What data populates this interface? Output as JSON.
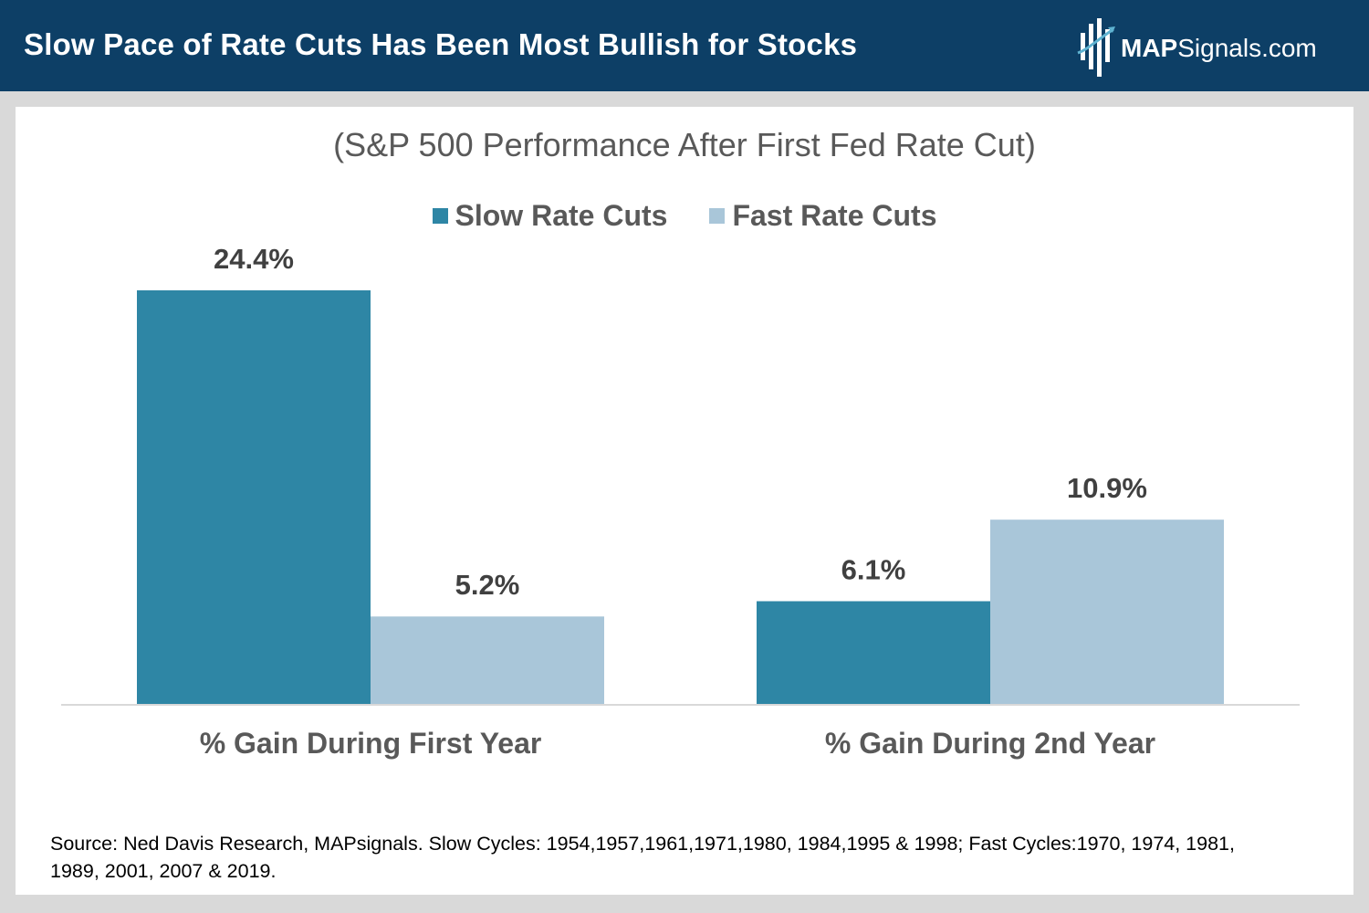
{
  "header": {
    "title": "Slow Pace of Rate Cuts Has Been Most Bullish for Stocks",
    "brand_bold": "MAP",
    "brand_rest": "Signals.com"
  },
  "colors": {
    "header_bg": "#0d3f66",
    "slow": "#2e86a5",
    "fast": "#a9c6d9",
    "text": "#595959"
  },
  "chart_data": {
    "type": "bar",
    "title": "(S&P 500 Performance After First Fed Rate Cut)",
    "categories": [
      "% Gain During First Year",
      "% Gain During 2nd Year"
    ],
    "series": [
      {
        "name": "Slow Rate Cuts",
        "values": [
          24.4,
          6.1
        ],
        "labels": [
          "24.4%",
          "6.1%"
        ],
        "color": "#2e86a5"
      },
      {
        "name": "Fast Rate Cuts",
        "values": [
          5.2,
          10.9
        ],
        "labels": [
          "5.2%",
          "10.9%"
        ],
        "color": "#a9c6d9"
      }
    ],
    "ylim": [
      0,
      24.4
    ],
    "legend": "top-center",
    "xlabel": "",
    "ylabel": ""
  },
  "footer": {
    "source": "Source: Ned Davis Research, MAPsignals. Slow Cycles: 1954,1957,1961,1971,1980, 1984,1995 & 1998; Fast Cycles:1970, 1974, 1981, 1989, 2001, 2007 & 2019."
  }
}
